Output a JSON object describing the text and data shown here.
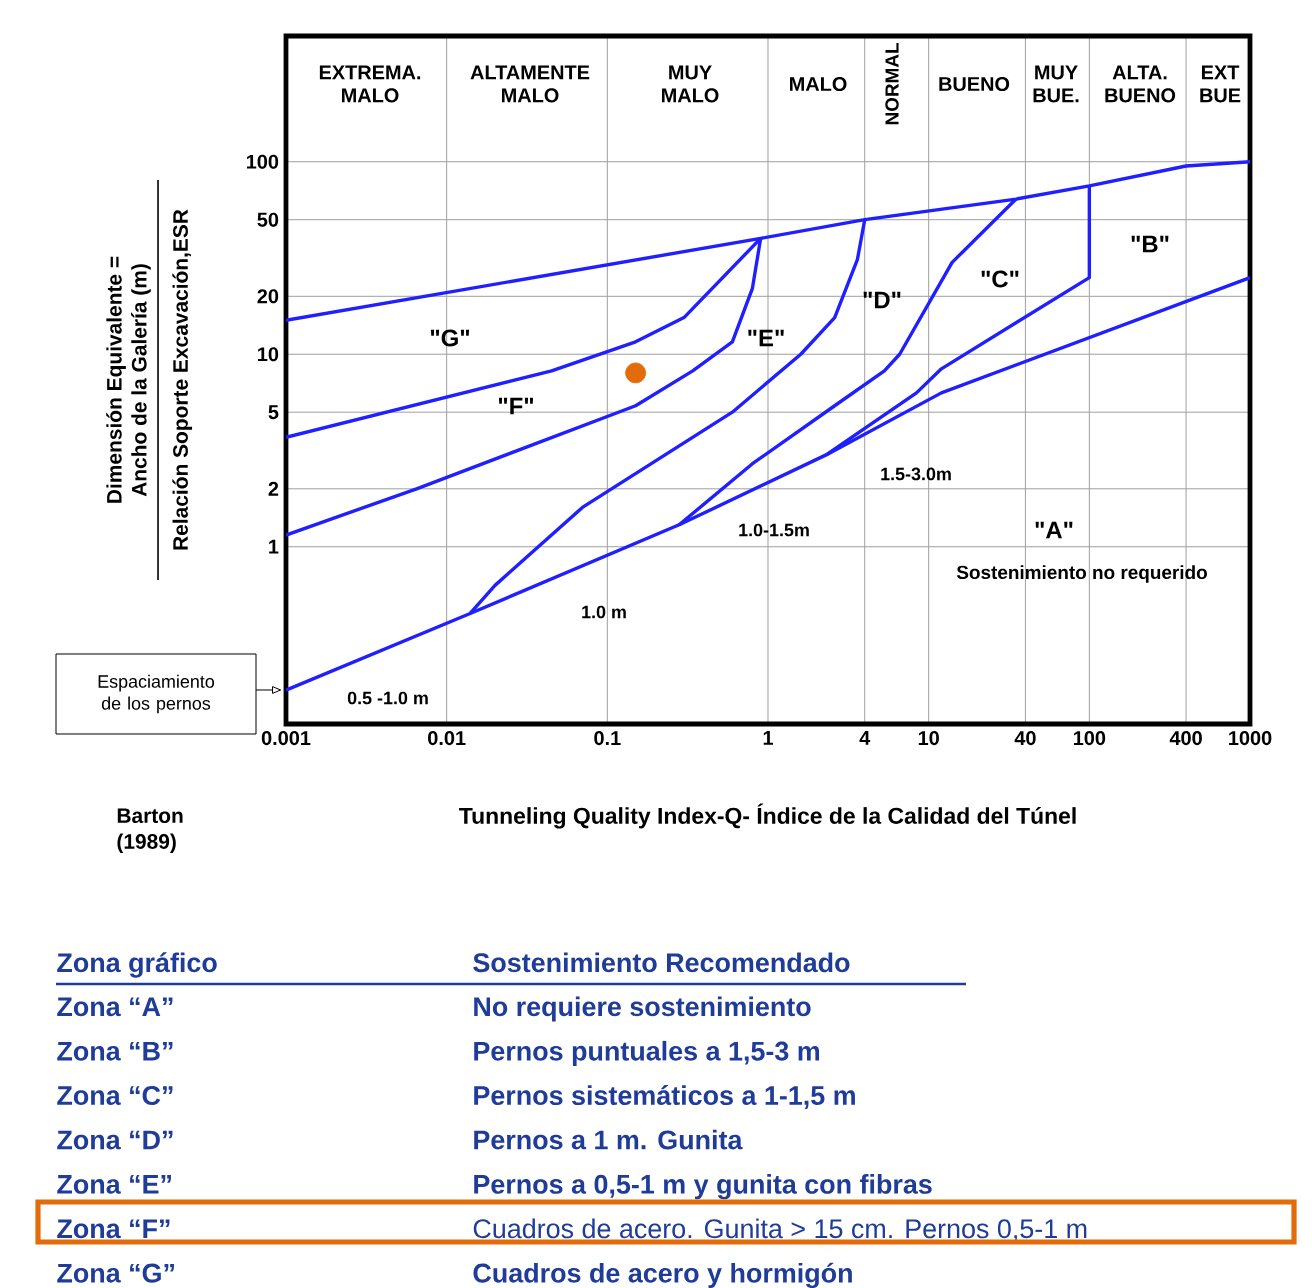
{
  "chart_data": {
    "type": "line",
    "xlabel": "Tunneling Quality Index-Q- Índice de la Calidad del Túnel",
    "ylabel": "Dimensión Equivalente = Ancho de la Galería (m)",
    "log": "xy",
    "grid": true,
    "xlim": [
      0.001,
      1000
    ],
    "ylim": [
      0.12,
      450
    ],
    "xticks": [
      0.001,
      0.01,
      0.1,
      1,
      4,
      10,
      40,
      100,
      400,
      1000
    ],
    "yticks": [
      1,
      2,
      5,
      10,
      20,
      50,
      100
    ],
    "series": [
      {
        "color": "#1f1fff",
        "x": [
          0.001,
          0.9,
          4,
          35,
          100,
          400,
          1000
        ],
        "values": [
          15,
          40,
          50,
          64,
          75,
          95,
          100
        ]
      },
      {
        "color": "#1f1fff",
        "x": [
          0.001,
          0.045,
          0.15,
          0.3,
          0.9
        ],
        "values": [
          3.7,
          8.2,
          11.6,
          15.5,
          40
        ]
      },
      {
        "color": "#1f1fff",
        "x": [
          0.001,
          0.0065,
          0.15,
          0.34,
          0.6,
          0.8,
          0.9
        ],
        "values": [
          1.15,
          2,
          5.4,
          8.2,
          11.6,
          22,
          40
        ]
      },
      {
        "color": "#1f1fff",
        "x": [
          0.014,
          0.02,
          0.07,
          0.6,
          1.6,
          2.6,
          3.6,
          4
        ],
        "values": [
          0.45,
          0.63,
          1.6,
          5,
          10,
          15.5,
          31,
          50
        ]
      },
      {
        "color": "#1f1fff",
        "x": [
          0.28,
          0.8,
          2.6,
          5.3,
          6.6,
          14,
          35
        ],
        "values": [
          1.3,
          2.7,
          5.4,
          8.2,
          10,
          30,
          64
        ]
      },
      {
        "color": "#1f1fff",
        "x": [
          2.3,
          8.4,
          12,
          100,
          100
        ],
        "values": [
          3,
          6.3,
          8.4,
          25,
          75
        ]
      },
      {
        "color": "#1f1fff",
        "x": [
          0.001,
          0.014,
          0.28,
          2.3,
          12,
          1000
        ],
        "values": [
          0.18,
          0.45,
          1.3,
          3,
          6.3,
          25
        ]
      },
      {
        "type": "scatter",
        "color": "#e36c0a",
        "x": [
          0.15
        ],
        "values": [
          8
        ]
      }
    ],
    "annotations": [
      "Relación Soporte Excavación,ESR",
      "Espaciamiento de los pernos",
      "Barton (1989)",
      "Zona gráfico",
      "Sostenimiento Recomendado",
      "Zona “A”",
      "No requiere sostenimiento",
      "Zona “B”",
      "Pernos puntuales a 1,5-3 m",
      "Zona “C”",
      "Pernos sistemáticos a 1-1,5 m",
      "Zona “D”",
      "Pernos a 1 m. Gunita",
      "Zona “E”",
      "Pernos a 0,5-1 m y gunita con fibras",
      "Zona “F”",
      "Cuadros de acero. Gunita > 15 cm. Pernos 0,5-1 m",
      "Zona “G”",
      "Cuadros de acero y hormigón",
      "\"G\"",
      "\"F\"",
      "\"E\"",
      "\"D\"",
      "\"C\"",
      "\"B\"",
      "\"A\"",
      "1.5-3.0m",
      "1.0-1.5m",
      "1.0 m",
      "0.5 -1.0 m",
      "Sostenimiento no requerido",
      "EXTREMA. MALO",
      "ALTAMENTE MALO",
      "MUY MALO",
      "MALO",
      "NORMAL",
      "BUENO",
      "MUY BUE.",
      "ALTA. BUENO",
      "EXT BUE"
    ]
  }
}
